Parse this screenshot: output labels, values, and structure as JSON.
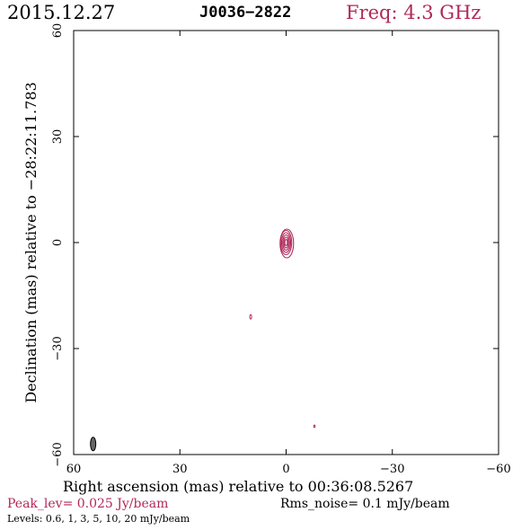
{
  "header": {
    "date": "2015.12.27",
    "source": "J0036−2822",
    "frequency": "Freq: 4.3 GHz"
  },
  "axes": {
    "xlabel": "Right ascension (mas) relative to 00:36:08.5267",
    "ylabel": "Declination (mas) relative to −28:22:11.783",
    "x_ticks": [
      {
        "value": 60,
        "label": "60"
      },
      {
        "value": 30,
        "label": "30"
      },
      {
        "value": 0,
        "label": "0"
      },
      {
        "value": -30,
        "label": "−30"
      },
      {
        "value": -60,
        "label": "−60"
      }
    ],
    "y_ticks": [
      {
        "value": 60,
        "label": "60"
      },
      {
        "value": 30,
        "label": "30"
      },
      {
        "value": 0,
        "label": "0"
      },
      {
        "value": -30,
        "label": "−30"
      },
      {
        "value": -60,
        "label": "−60"
      }
    ],
    "x_range": [
      60,
      -60
    ],
    "y_range": [
      -60,
      60
    ]
  },
  "footer": {
    "peak": "Peak_lev=  0.025 Jy/beam",
    "rms": "Rms_noise=   0.1 mJy/beam",
    "levels": "Levels: 0.6,    1,    3,    5,   10,   20 mJy/beam"
  },
  "colors": {
    "contour": "#b0285a",
    "beam": "#666666"
  }
}
